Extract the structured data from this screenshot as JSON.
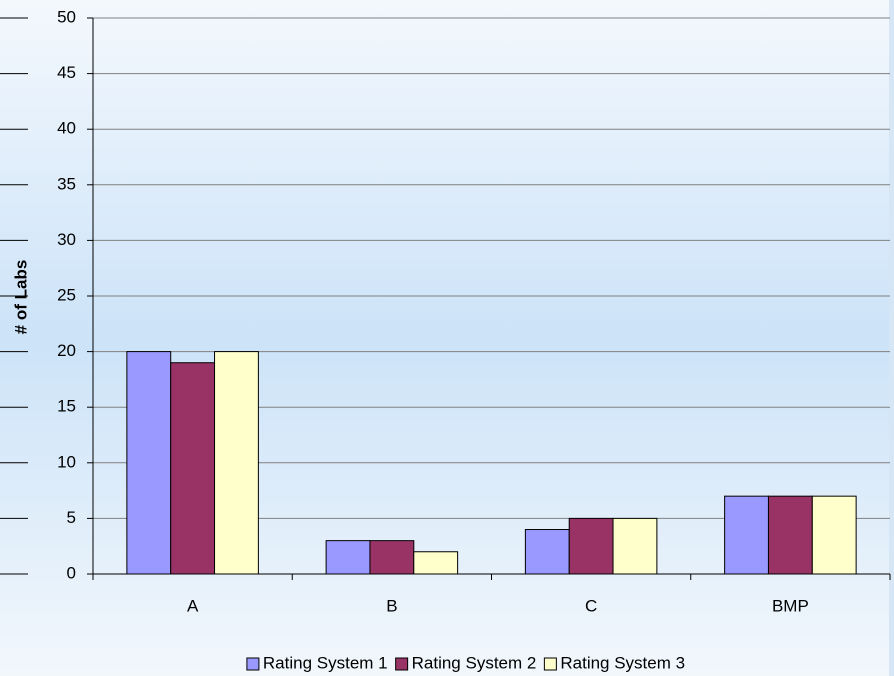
{
  "chart_data": {
    "type": "bar",
    "y_label": "# of Labs",
    "categories": [
      "A",
      "B",
      "C",
      "BMP"
    ],
    "series": [
      {
        "name": "Rating System 1",
        "color": "#9999ff",
        "values": [
          20,
          3,
          4,
          7
        ]
      },
      {
        "name": "Rating System 2",
        "color": "#993366",
        "values": [
          19,
          3,
          5,
          7
        ]
      },
      {
        "name": "Rating System 3",
        "color": "#ffffcc",
        "values": [
          20,
          2,
          5,
          7
        ]
      }
    ],
    "ylim": [
      0,
      50
    ],
    "yticks": [
      0,
      5,
      10,
      15,
      20,
      25,
      30,
      35,
      40,
      45,
      50
    ],
    "grid": true,
    "legend": "bottom"
  }
}
